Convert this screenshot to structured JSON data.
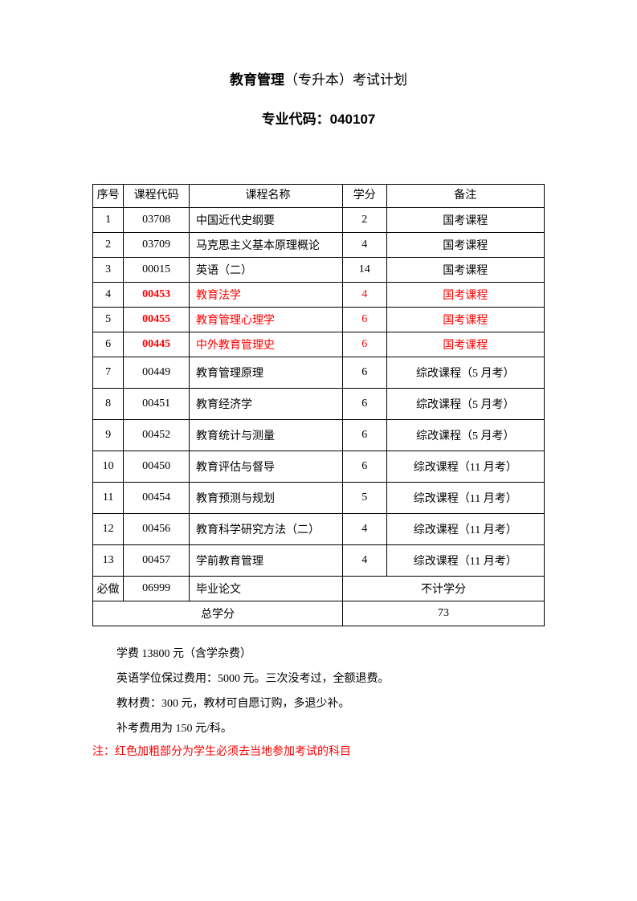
{
  "title": {
    "main_bold": "教育管理",
    "main_rest": "（专升本）考试计划",
    "subtitle": "专业代码：040107"
  },
  "table": {
    "headers": {
      "seq": "序号",
      "code": "课程代码",
      "name": "课程名称",
      "credit": "学分",
      "remark": "备注"
    },
    "rows": [
      {
        "seq": "1",
        "code": "03708",
        "name": "中国近代史纲要",
        "credit": "2",
        "remark": "国考课程",
        "highlight": false,
        "tall": false
      },
      {
        "seq": "2",
        "code": "03709",
        "name": "马克思主义基本原理概论",
        "credit": "4",
        "remark": "国考课程",
        "highlight": false,
        "tall": false
      },
      {
        "seq": "3",
        "code": "00015",
        "name": "英语（二）",
        "credit": "14",
        "remark": "国考课程",
        "highlight": false,
        "tall": false
      },
      {
        "seq": "4",
        "code": "00453",
        "name": "教育法学",
        "credit": "4",
        "remark": "国考课程",
        "highlight": true,
        "tall": false
      },
      {
        "seq": "5",
        "code": "00455",
        "name": "教育管理心理学",
        "credit": "6",
        "remark": "国考课程",
        "highlight": true,
        "tall": false
      },
      {
        "seq": "6",
        "code": "00445",
        "name": "中外教育管理史",
        "credit": "6",
        "remark": "国考课程",
        "highlight": true,
        "tall": false
      },
      {
        "seq": "7",
        "code": "00449",
        "name": "教育管理原理",
        "credit": "6",
        "remark": "综改课程（5 月考）",
        "highlight": false,
        "tall": true
      },
      {
        "seq": "8",
        "code": "00451",
        "name": "教育经济学",
        "credit": "6",
        "remark": "综改课程（5 月考）",
        "highlight": false,
        "tall": true
      },
      {
        "seq": "9",
        "code": "00452",
        "name": "教育统计与测量",
        "credit": "6",
        "remark": "综改课程（5 月考）",
        "highlight": false,
        "tall": true
      },
      {
        "seq": "10",
        "code": "00450",
        "name": "教育评估与督导",
        "credit": "6",
        "remark": "综改课程（11 月考）",
        "highlight": false,
        "tall": true
      },
      {
        "seq": "11",
        "code": "00454",
        "name": "教育预测与规划",
        "credit": "5",
        "remark": "综改课程（11 月考）",
        "highlight": false,
        "tall": true
      },
      {
        "seq": "12",
        "code": "00456",
        "name": "教育科学研究方法（二）",
        "credit": "4",
        "remark": "综改课程（11 月考）",
        "highlight": false,
        "tall": true
      },
      {
        "seq": "13",
        "code": "00457",
        "name": "学前教育管理",
        "credit": "4",
        "remark": "综改课程（11 月考）",
        "highlight": false,
        "tall": true
      }
    ],
    "footer": {
      "required_label": "必做",
      "required_code": "06999",
      "required_name": "毕业论文",
      "required_remark": "不计学分",
      "total_label": "总学分",
      "total_value": "73"
    }
  },
  "notes": {
    "line1": "学费 13800 元（含学杂费）",
    "line2": "英语学位保过费用：5000 元。三次没考过，全额退费。",
    "line3": "教材费：300 元，教材可自愿订购，多退少补。",
    "line4": "补考费用为 150 元/科。",
    "red_note": "注：红色加粗部分为学生必须去当地参加考试的科目"
  }
}
